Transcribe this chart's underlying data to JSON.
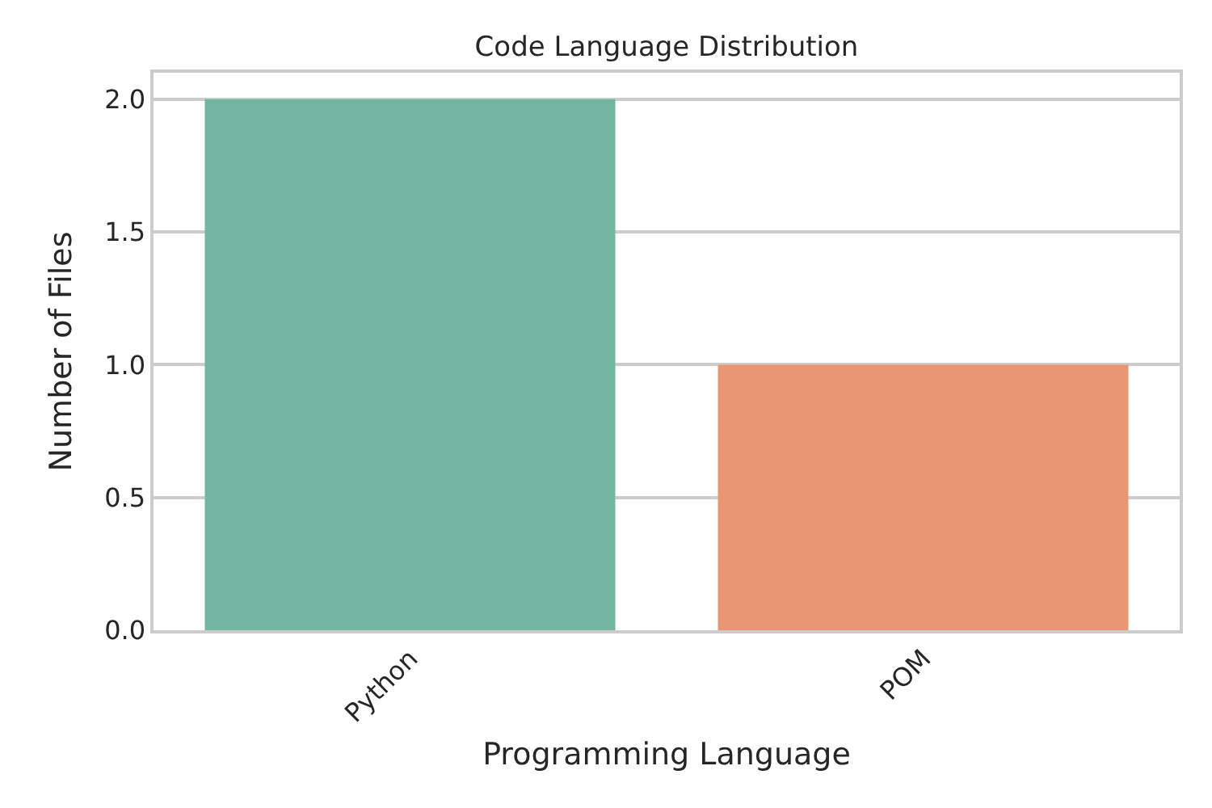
{
  "chart_data": {
    "type": "bar",
    "title": "Code Language Distribution",
    "xlabel": "Programming Language",
    "ylabel": "Number of Files",
    "categories": [
      "Python",
      "POM"
    ],
    "values": [
      2,
      1
    ],
    "colors": [
      "#72b6a1",
      "#e99675"
    ],
    "ylim": [
      0,
      2.1
    ],
    "yticks": [
      {
        "value": 0,
        "label": "0.0"
      },
      {
        "value": 0.5,
        "label": "0.5"
      },
      {
        "value": 1,
        "label": "1.0"
      },
      {
        "value": 1.5,
        "label": "1.5"
      },
      {
        "value": 2,
        "label": "2.0"
      }
    ],
    "grid": "y"
  }
}
